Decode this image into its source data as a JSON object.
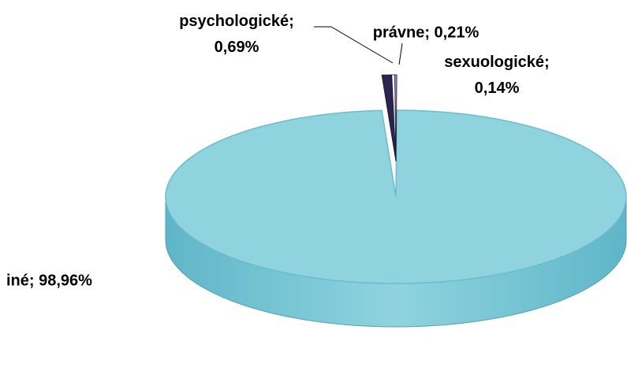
{
  "chart_data": {
    "type": "pie",
    "labels": [
      "iné; 98,96%",
      "psychologické; 0,69%",
      "právne; 0,21%",
      "sexuologické; 0,14%"
    ],
    "values": [
      98.96,
      0.69,
      0.21,
      0.14
    ],
    "colors": [
      "#8fd3df",
      "#2b2450",
      "#ffffff",
      "#9a9acc"
    ]
  }
}
